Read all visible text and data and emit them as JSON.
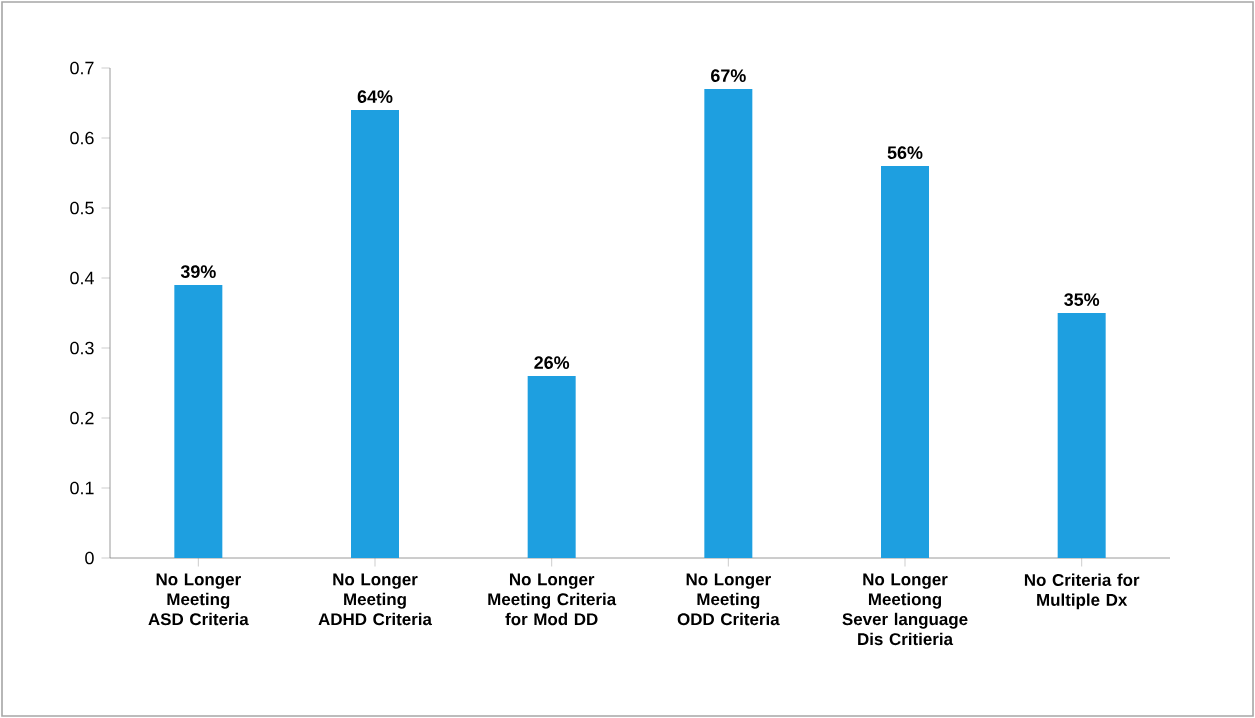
{
  "chart_data": {
    "type": "bar",
    "categories": [
      "No Longer Meeting ASD Criteria",
      "No Longer Meeting ADHD Criteria",
      "No Longer Meeting Criteria for Mod DD",
      "No Longer Meeting ODD Criteria",
      "No Longer Meetiong Sever language Dis Critieria",
      "No Criteria for Multiple Dx"
    ],
    "values": [
      0.39,
      0.64,
      0.26,
      0.67,
      0.56,
      0.35
    ],
    "value_labels": [
      "39%",
      "64%",
      "26%",
      "67%",
      "56%",
      "35%"
    ],
    "color": "#1e9fe0",
    "ylim": [
      0,
      0.7
    ],
    "yticks": [
      0,
      0.1,
      0.2,
      0.3,
      0.4,
      0.5,
      0.6,
      0.7
    ],
    "grid": false
  }
}
